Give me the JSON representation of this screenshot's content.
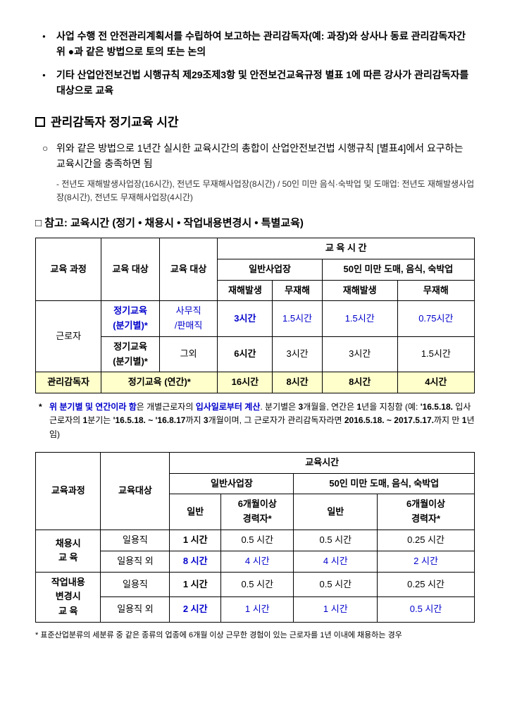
{
  "bullets": {
    "b1": "사업 수행 전 안전관리계획서를 수립하여 보고하는 관리감독자(예: 과장)와 상사나 동료 관리감독자간 위 ●과 같은 방법으로 토의 또는 논의",
    "b2": "기타 산업안전보건법 시행규칙 제29조제3항 및 안전보건교육규정 별표 1에 따른 강사가 관리감독자를 대상으로 교육"
  },
  "section1": {
    "title": "관리감독자 정기교육 시간",
    "item1": "위와 같은 방법으로 1년간 실시한 교육시간의 총합이 산업안전보건법 시행규칙 [별표4]에서 요구하는 교육시간을 충족하면 됨",
    "note1": "전년도 재해발생사업장(16시간), 전년도 무재해사업장(8시간) / 50인 미만 음식·숙박업 및 도매업: 전년도 재해발생사업장(8시간), 전년도 무재해사업장(4시간)"
  },
  "ref": {
    "title": "참고: 교육시간 (정기 • 채용시 • 작업내용변경시 • 특별교육)"
  },
  "table1": {
    "headers": {
      "course": "교육\n과정",
      "target1": "교육\n대상",
      "target2": "교육\n대상",
      "time": "교  육  시  간",
      "normal": "일반사업장",
      "small": "50인 미만 도매, 음식, 숙박업",
      "accident": "재해발생",
      "noaccident": "무재해"
    },
    "rows": [
      {
        "course": "근로자",
        "target1": "정기교육\n(분기별)*",
        "target2": "사무직\n/판매직",
        "c1": "3시간",
        "c2": "1.5시간",
        "c3": "1.5시간",
        "c4": "0.75시간"
      },
      {
        "target1": "정기교육\n(분기별)*",
        "target2": "그외",
        "c1": "6시간",
        "c2": "3시간",
        "c3": "3시간",
        "c4": "1.5시간"
      },
      {
        "course": "관리감독자",
        "target1": "정기교육 (연간)*",
        "c1": "16시간",
        "c2": "8시간",
        "c3": "8시간",
        "c4": "4시간"
      }
    ]
  },
  "starNote": {
    "text": "위 분기별 및 연간이라 함은 개별근로자의 입사일로부터 계산. 분기별은 3개월을, 연간은 1년을 지칭함 (예: '16.5.18. 입사 근로자의 1분기는 '16.5.18. ~ '16.8.17까지 3개월이며, 그 근로자가 관리감독자라면 2016.5.18. ~ 2017.5.17.까지 만 1년임)"
  },
  "table2": {
    "headers": {
      "course": "교육과정",
      "target": "교육대상",
      "time": "교육시간",
      "normal": "일반사업장",
      "small": "50인 미만 도매, 음식, 숙박업",
      "gen": "일반",
      "exp": "6개월이상\n경력자*"
    },
    "rows": [
      {
        "course": "채용시\n교  육",
        "target": "일용직",
        "c1": "1 시간",
        "c2": "0.5 시간",
        "c3": "0.5 시간",
        "c4": "0.25 시간"
      },
      {
        "target": "일용직 외",
        "c1": "8 시간",
        "c2": "4 시간",
        "c3": "4 시간",
        "c4": "2 시간"
      },
      {
        "course": "작업내용\n변경시\n교  육",
        "target": "일용직",
        "c1": "1 시간",
        "c2": "0.5 시간",
        "c3": "0.5 시간",
        "c4": "0.25 시간"
      },
      {
        "target": "일용직 외",
        "c1": "2 시간",
        "c2": "1 시간",
        "c3": "1 시간",
        "c4": "0.5 시간"
      }
    ]
  },
  "footnote": {
    "text": "표준산업분류의 세분류 중 같은 종류의 업종에 6개월 이상 근무한 경험이 있는 근로자를 1년 이내에 채용하는 경우"
  }
}
